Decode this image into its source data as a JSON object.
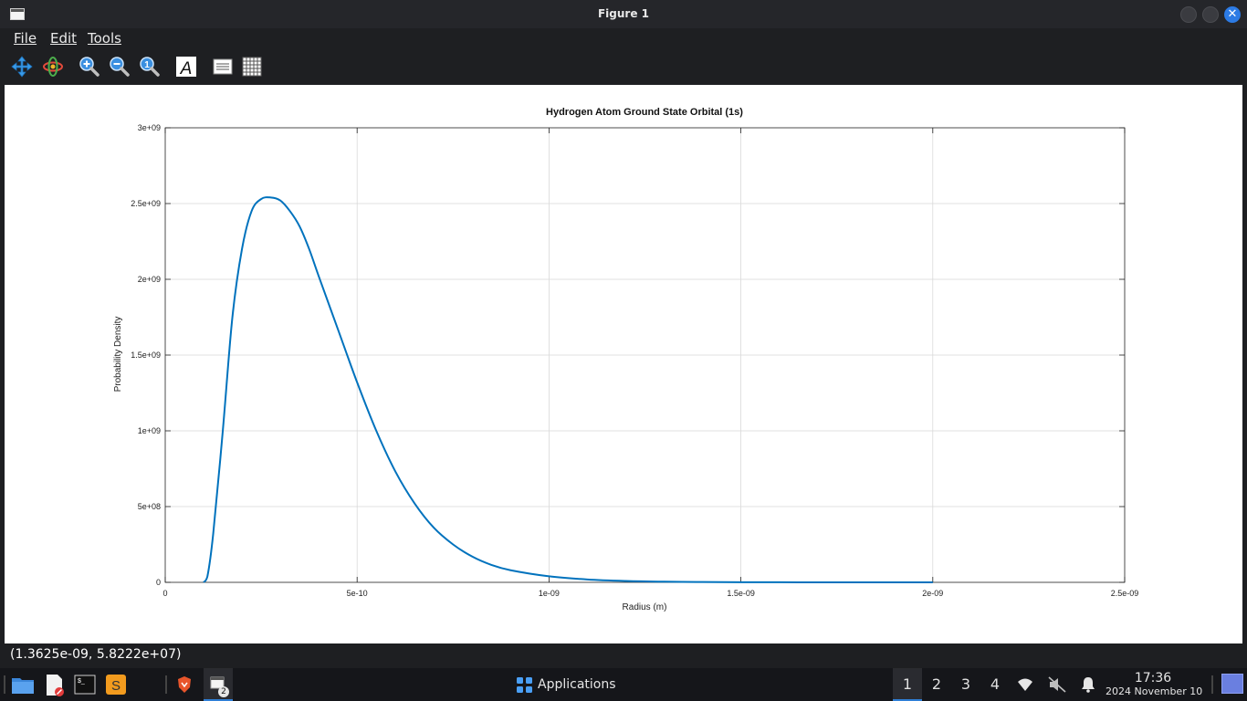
{
  "window": {
    "title": "Figure 1"
  },
  "menu": {
    "file": "File",
    "edit": "Edit",
    "tools": "Tools"
  },
  "toolbar": [
    "pan-icon",
    "rotate-icon",
    "zoom-in-icon",
    "zoom-out-icon",
    "zoom-reset-icon",
    "text-icon",
    "legend-icon",
    "grid-icon"
  ],
  "chart_data": {
    "type": "line",
    "title": "Hydrogen Atom Ground State Orbital (1s)",
    "xlabel": "Radius (m)",
    "ylabel": "Probability Density",
    "xlim": [
      0,
      2.5e-09
    ],
    "ylim": [
      0,
      3000000000.0
    ],
    "xticks": [
      0,
      5e-10,
      1e-09,
      1.5e-09,
      2e-09,
      2.5e-09
    ],
    "xtick_labels": [
      "0",
      "5e-10",
      "1e-09",
      "1.5e-09",
      "2e-09",
      "2.5e-09"
    ],
    "yticks": [
      0,
      500000000.0,
      1000000000.0,
      1500000000.0,
      2000000000.0,
      2500000000.0,
      3000000000.0
    ],
    "ytick_labels": [
      "0",
      "5e+08",
      "1e+09",
      "1.5e+09",
      "2e+09",
      "2.5e+09",
      "3e+09"
    ],
    "grid": true,
    "color": "#0072bd",
    "series": [
      {
        "x": [
          1e-10,
          1.1e-10,
          1.25e-10,
          1.5e-10,
          1.75e-10,
          2e-10,
          2.25e-10,
          2.5e-10,
          2.75e-10,
          3e-10,
          3.25e-10,
          3.5e-10,
          3.75e-10,
          4e-10,
          4.5e-10,
          5e-10,
          5.5e-10,
          6e-10,
          6.5e-10,
          7e-10,
          7.5e-10,
          8e-10,
          8.5e-10,
          9e-10,
          1e-09,
          1.1e-09,
          1.2e-09,
          1.3e-09,
          1.4e-09,
          1.5e-09,
          1.6e-09,
          1.7e-09,
          1.8e-09,
          1.9e-09,
          2e-09
        ],
        "y": [
          0,
          40000000.0,
          320000000.0,
          1000000000.0,
          1750000000.0,
          2200000000.0,
          2450000000.0,
          2530000000.0,
          2540000000.0,
          2520000000.0,
          2450000000.0,
          2350000000.0,
          2200000000.0,
          2020000000.0,
          1670000000.0,
          1320000000.0,
          1000000000.0,
          730000000.0,
          520000000.0,
          360000000.0,
          250000000.0,
          170000000.0,
          115000000.0,
          80000000.0,
          40000000.0,
          19000000.0,
          9000000.0,
          4200000.0,
          1900000.0,
          900000.0,
          400000.0,
          200000.0,
          90000.0,
          40000.0,
          20000.0
        ]
      }
    ]
  },
  "status": {
    "coords": "(1.3625e-09, 5.8222e+07)"
  },
  "taskbar": {
    "applications": "Applications",
    "workspaces": [
      "1",
      "2",
      "3",
      "4"
    ],
    "time": "17:36",
    "date": "2024 November 10",
    "badge": "2"
  }
}
